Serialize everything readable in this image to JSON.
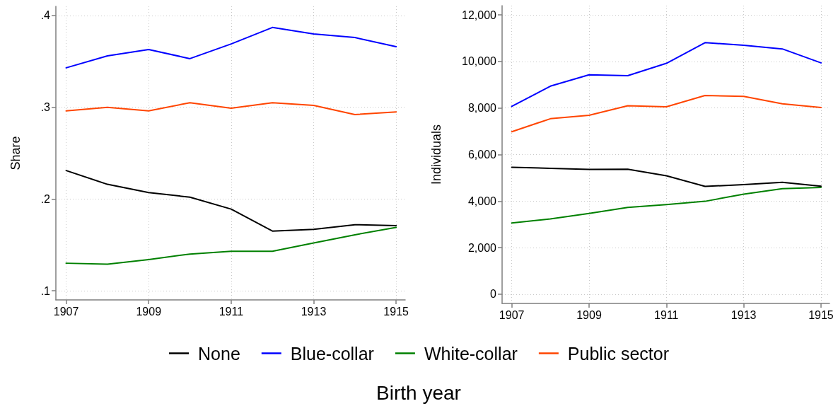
{
  "chart_data": [
    {
      "type": "line",
      "ylabel": "Share",
      "xlabel": "Birth year",
      "legend": "bottom",
      "grid": true,
      "x": [
        1907,
        1908,
        1909,
        1910,
        1911,
        1912,
        1913,
        1914,
        1915
      ],
      "xlim": [
        1906.75,
        1915.22
      ],
      "xticks": [
        1907,
        1909,
        1911,
        1913,
        1915
      ],
      "ylim": [
        0.09,
        0.41
      ],
      "yticks": [
        {
          "value": 0.1,
          "label": ".1"
        },
        {
          "value": 0.2,
          "label": ".2"
        },
        {
          "value": 0.3,
          "label": ".3"
        },
        {
          "value": 0.4,
          "label": ".4"
        }
      ],
      "series": [
        {
          "name": "None",
          "color": "#000000",
          "values": [
            0.231,
            0.216,
            0.207,
            0.202,
            0.189,
            0.165,
            0.167,
            0.172,
            0.171
          ]
        },
        {
          "name": "Blue-collar",
          "color": "#0000ff",
          "values": [
            0.343,
            0.356,
            0.363,
            0.353,
            0.369,
            0.387,
            0.38,
            0.376,
            0.366
          ]
        },
        {
          "name": "White-collar",
          "color": "#008000",
          "values": [
            0.13,
            0.129,
            0.134,
            0.14,
            0.143,
            0.143,
            0.152,
            0.161,
            0.169
          ]
        },
        {
          "name": "Public sector",
          "color": "#ff4500",
          "values": [
            0.296,
            0.3,
            0.296,
            0.305,
            0.299,
            0.305,
            0.302,
            0.292,
            0.295
          ]
        }
      ]
    },
    {
      "type": "line",
      "ylabel": "Individuals",
      "grid": true,
      "x": [
        1907,
        1908,
        1909,
        1910,
        1911,
        1912,
        1913,
        1914,
        1915
      ],
      "xlim": [
        1906.75,
        1915.22
      ],
      "xticks": [
        1907,
        1909,
        1911,
        1913,
        1915
      ],
      "ylim": [
        -400,
        12400
      ],
      "yticks": [
        0,
        {
          "value": 2000,
          "label": "2,000"
        },
        {
          "value": 4000,
          "label": "4,000"
        },
        {
          "value": 6000,
          "label": "6,000"
        },
        {
          "value": 8000,
          "label": "8,000"
        },
        {
          "value": 10000,
          "label": "10,000"
        },
        {
          "value": 12000,
          "label": "12,000"
        }
      ],
      "series": [
        {
          "name": "None",
          "color": "#000000",
          "values": [
            5450,
            5410,
            5360,
            5370,
            5090,
            4630,
            4710,
            4810,
            4640
          ]
        },
        {
          "name": "Blue-collar",
          "color": "#0000ff",
          "values": [
            8070,
            8940,
            9430,
            9390,
            9920,
            10810,
            10700,
            10540,
            9940
          ]
        },
        {
          "name": "White-collar",
          "color": "#008000",
          "values": [
            3060,
            3230,
            3470,
            3730,
            3850,
            3990,
            4300,
            4530,
            4590
          ]
        },
        {
          "name": "Public sector",
          "color": "#ff4500",
          "values": [
            6980,
            7540,
            7690,
            8100,
            8050,
            8540,
            8500,
            8180,
            8020
          ]
        }
      ]
    }
  ]
}
